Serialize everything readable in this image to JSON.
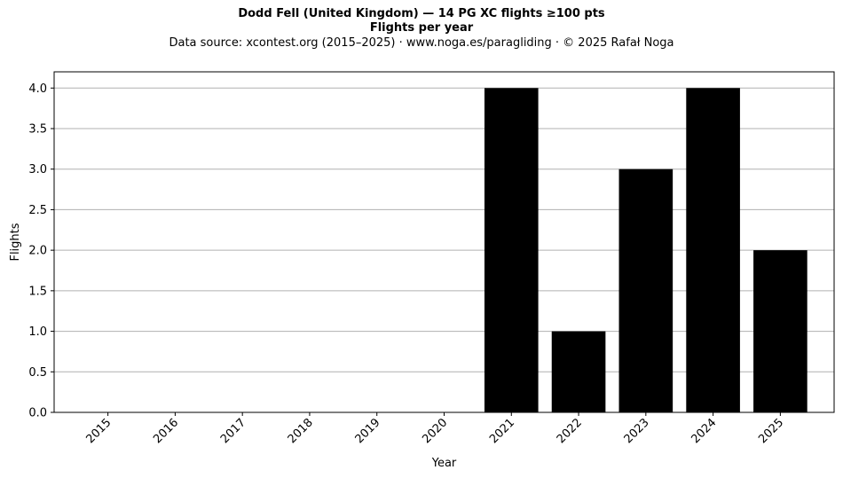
{
  "chart_data": {
    "type": "bar",
    "title": "Dodd Fell (United Kingdom)  —  14 PG XC flights ≥100 pts",
    "subtitle": "Flights per year",
    "source_note": "Data source: xcontest.org (2015–2025)  ·  www.noga.es/paragliding  ·  © 2025 Rafał Noga",
    "xlabel": "Year",
    "ylabel": "Flights",
    "categories": [
      "2015",
      "2016",
      "2017",
      "2018",
      "2019",
      "2020",
      "2021",
      "2022",
      "2023",
      "2024",
      "2025"
    ],
    "values": [
      0,
      0,
      0,
      0,
      0,
      0,
      4,
      1,
      3,
      4,
      2
    ],
    "ylim": [
      0,
      4.2
    ],
    "yticks": [
      "0.0",
      "0.5",
      "1.0",
      "1.5",
      "2.0",
      "2.5",
      "3.0",
      "3.5",
      "4.0"
    ],
    "grid": "horizontal",
    "bar_color": "#000000",
    "grid_color": "#b0b0b0"
  }
}
